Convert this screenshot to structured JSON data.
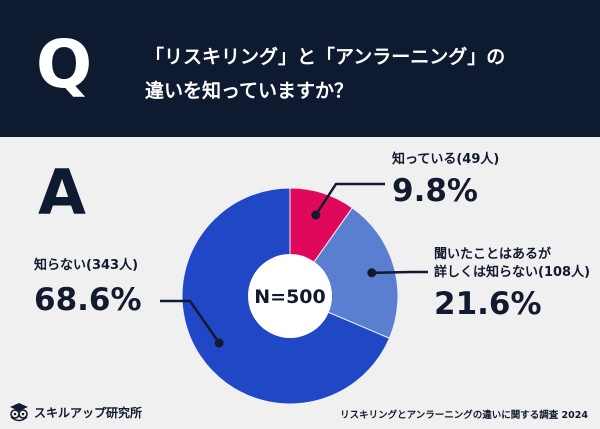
{
  "header": {
    "q_letter": "Q",
    "question_line1": "「リスキリング」と「アンラーニング」の",
    "question_line2": "違いを知っていますか？"
  },
  "answer_letter": "A",
  "colors": {
    "navy": "#0e1a30",
    "red": "#e0085a",
    "light_blue": "#5a7fd0",
    "blue": "#1f47c6",
    "background": "#f0f0f0"
  },
  "chart_data": {
    "type": "pie",
    "center_label": "N=500",
    "categories": [
      "知っている",
      "聞いたことはあるが詳しくは知らない",
      "知らない"
    ],
    "values": [
      9.8,
      21.6,
      68.6
    ],
    "counts": [
      49,
      108,
      343
    ],
    "labels": [
      {
        "lines": [
          "知っている(49人)"
        ],
        "percent": "9.8%"
      },
      {
        "lines": [
          "聞いたことはあるが",
          "詳しくは知らない(108人)"
        ],
        "percent": "21.6%"
      },
      {
        "lines": [
          "知らない(343人)"
        ],
        "percent": "68.6%"
      }
    ],
    "colors": [
      "#e0085a",
      "#5a7fd0",
      "#1f47c6"
    ]
  },
  "logo_text": "スキルアップ研究所",
  "footer_text": "リスキリングとアンラーニングの違いに関する調査 2024"
}
